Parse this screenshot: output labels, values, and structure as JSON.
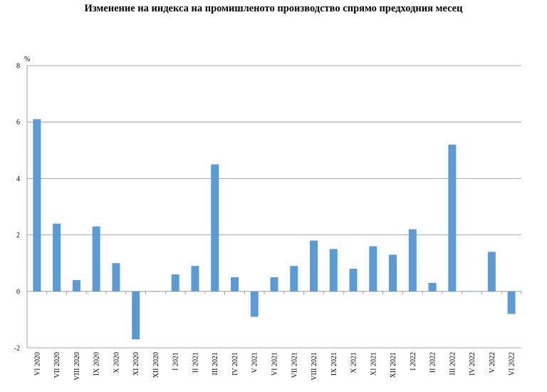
{
  "chart_data": {
    "type": "bar",
    "title": "Изменение на индекса на промишленото производство спрямо предходния месец",
    "ylabel": "%",
    "xlabel": "",
    "ylim": [
      -2,
      8
    ],
    "yticks": [
      -2,
      0,
      2,
      4,
      6,
      8
    ],
    "grid": true,
    "bar_color": "#5b9bd5",
    "categories": [
      "VI 2020",
      "VII 2020",
      "VIII 2020",
      "IX 2020",
      "X 2020",
      "XI 2020",
      "XII 2020",
      "I 2021",
      "II 2021",
      "III 2021",
      "IV 2021",
      "V 2021",
      "VI 2021",
      "VII 2021",
      "VIII 2021",
      "IX 2021",
      "X 2021",
      "XI 2021",
      "XII 2021",
      "I 2022",
      "II 2022",
      "III 2022",
      "IV 2022",
      "V 2022",
      "VI 2022"
    ],
    "values": [
      6.1,
      2.4,
      0.4,
      2.3,
      1.0,
      -1.7,
      0.0,
      0.6,
      0.9,
      4.5,
      0.5,
      -0.9,
      0.5,
      0.9,
      1.8,
      1.5,
      0.8,
      1.6,
      1.3,
      2.2,
      0.3,
      5.2,
      0.0,
      1.4,
      -0.8
    ]
  }
}
